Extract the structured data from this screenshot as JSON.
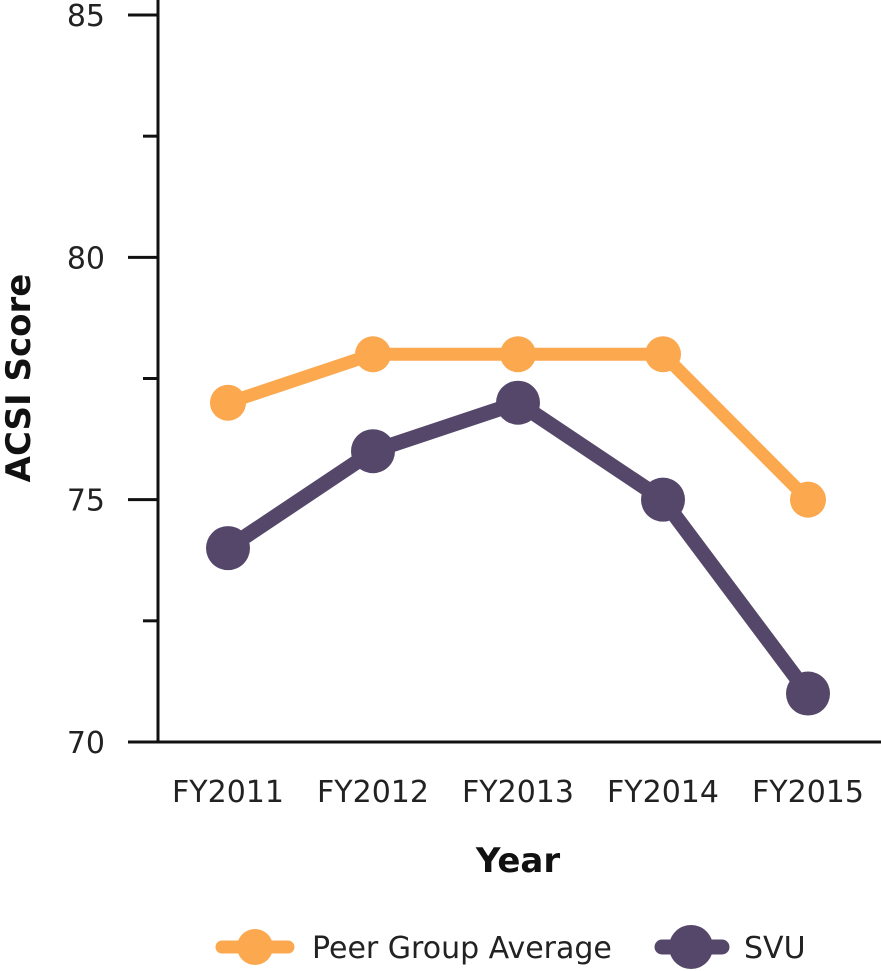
{
  "chart_data": {
    "type": "line",
    "title": "",
    "xlabel": "Year",
    "ylabel": "ACSI Score",
    "categories": [
      "FY2011",
      "FY2012",
      "FY2013",
      "FY2014",
      "FY2015"
    ],
    "ylim": [
      70,
      85
    ],
    "y_major_ticks": [
      70,
      75,
      80,
      85
    ],
    "y_minor_ticks": [
      72.5,
      77.5,
      82.5
    ],
    "grid": false,
    "legend_position": "bottom",
    "series": [
      {
        "name": "Peer Group Average",
        "color": "#FBA84F",
        "values": [
          77,
          78,
          78,
          78,
          75
        ]
      },
      {
        "name": "SVU",
        "color": "#55476A",
        "values": [
          74,
          76,
          77,
          75,
          71
        ]
      }
    ]
  }
}
